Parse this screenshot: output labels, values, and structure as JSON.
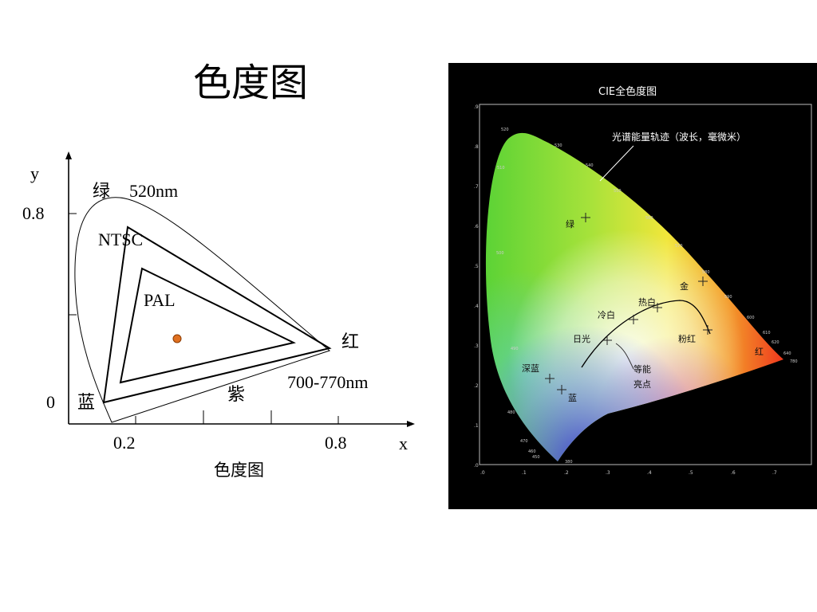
{
  "slide": {
    "title": "色度图"
  },
  "left_diagram": {
    "axis": {
      "y_label": "y",
      "x_label": "x",
      "y_tick_08": "0.8",
      "y_tick_0": "0",
      "x_tick_02": "0.2",
      "x_tick_08": "0.8"
    },
    "labels": {
      "green": "绿",
      "green_wavelength": "520nm",
      "ntsc": "NTSC",
      "pal": "PAL",
      "red": "红",
      "red_wavelength": "700-770nm",
      "purple": "紫",
      "blue": "蓝"
    },
    "caption": "色度图",
    "colors": {
      "white_point": "#e07020",
      "stroke": "#000000"
    }
  },
  "cie_panel": {
    "title": "CIE全色度图",
    "locus_label": "光谱能量轨迹（波长，毫微米）",
    "wavelengths": [
      "520",
      "530",
      "540",
      "550",
      "560",
      "570",
      "580",
      "590",
      "600",
      "610",
      "620",
      "640",
      "780",
      "510",
      "500",
      "490",
      "480",
      "470",
      "460",
      "450",
      "380"
    ],
    "y_ticks": [
      ".9",
      ".8",
      ".7",
      ".6",
      ".5",
      ".4",
      ".3",
      ".2",
      ".1",
      ".0"
    ],
    "x_ticks": [
      ".0",
      ".1",
      ".2",
      ".3",
      ".4",
      ".5",
      ".6",
      ".7"
    ],
    "color_labels": {
      "green": "绿",
      "gold": "金",
      "warm_white": "热白",
      "cool_white": "冷白",
      "daylight": "日光",
      "pink_red": "粉红",
      "red": "红",
      "deep_blue": "深蓝",
      "blue": "蓝",
      "equal_energy_1": "等能",
      "equal_energy_2": "亮点"
    },
    "colors": {
      "background": "#000000",
      "text": "#ffffff"
    }
  }
}
